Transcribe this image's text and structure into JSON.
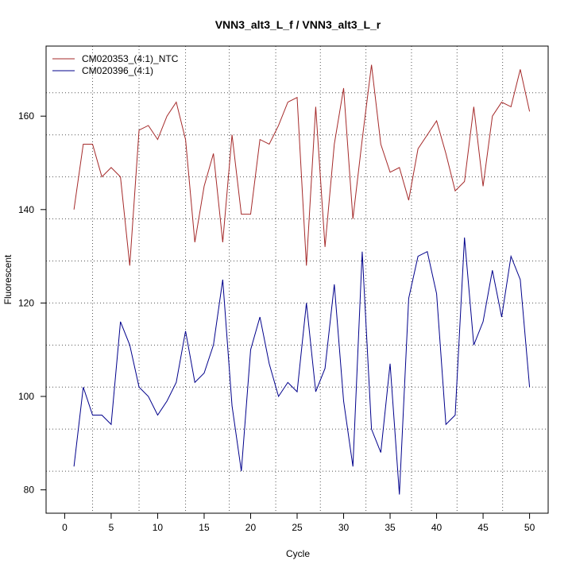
{
  "chart_data": {
    "type": "line",
    "title": "VNN3_alt3_L_f / VNN3_alt3_L_r",
    "xlabel": "Cycle",
    "ylabel": "Fluorescent",
    "xlim": [
      -2,
      52
    ],
    "ylim": [
      75,
      175
    ],
    "x_ticks": [
      0,
      5,
      10,
      15,
      20,
      25,
      30,
      35,
      40,
      45,
      50
    ],
    "y_ticks": [
      80,
      100,
      120,
      140,
      160
    ],
    "vertical_gridlines": [
      3,
      8,
      13,
      17.7,
      22.7,
      27.5,
      32.4,
      37.3,
      42.2,
      47.1
    ],
    "horizontal_gridlines": [
      84,
      93,
      102,
      111,
      120,
      129,
      138,
      147,
      156,
      165
    ],
    "legend_position": "top-left",
    "x": [
      1,
      2,
      3,
      4,
      5,
      6,
      7,
      8,
      9,
      10,
      11,
      12,
      13,
      14,
      15,
      16,
      17,
      18,
      19,
      20,
      21,
      22,
      23,
      24,
      25,
      26,
      27,
      28,
      29,
      30,
      31,
      32,
      33,
      34,
      35,
      36,
      37,
      38,
      39,
      40,
      41,
      42,
      43,
      44,
      45,
      46,
      47,
      48,
      49,
      50
    ],
    "series": [
      {
        "name": "CM020353_(4:1)_NTC",
        "color": "#a52a2a",
        "values": [
          140,
          154,
          154,
          147,
          149,
          147,
          128,
          157,
          158,
          155,
          160,
          163,
          155,
          133,
          145,
          152,
          133,
          156,
          139,
          139,
          155,
          154,
          158,
          163,
          164,
          128,
          162,
          132,
          154,
          166,
          138,
          155,
          171,
          154,
          148,
          149,
          142,
          153,
          156,
          159,
          152,
          144,
          146,
          162,
          145,
          160,
          163,
          162,
          170,
          161
        ]
      },
      {
        "name": "CM020396_(4:1)",
        "color": "#00008b",
        "values": [
          85,
          102,
          96,
          96,
          94,
          116,
          111,
          102,
          100,
          96,
          99,
          103,
          114,
          103,
          105,
          111,
          125,
          98,
          84,
          110,
          117,
          107,
          100,
          103,
          101,
          120,
          101,
          106,
          124,
          99,
          85,
          131,
          93,
          88,
          107,
          79,
          121,
          130,
          131,
          122,
          94,
          96,
          134,
          111,
          116,
          127,
          117,
          130,
          125,
          102
        ]
      }
    ]
  }
}
